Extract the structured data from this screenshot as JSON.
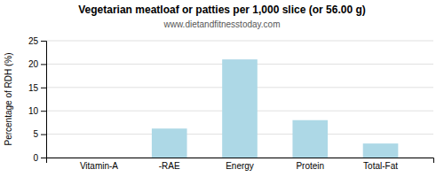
{
  "chart_data": {
    "type": "bar",
    "title": "Vegetarian meatloaf or patties per 1,000 slice (or 56.00 g)",
    "subtitle": "www.dietandfitnesstoday.com",
    "ylabel": "Percentage of RDH (%)",
    "categories": [
      "Vitamin-A",
      "-RAE",
      "Energy",
      "Protein",
      "Total-Fat"
    ],
    "values": [
      0,
      6.2,
      21.0,
      8.0,
      3.0
    ],
    "color": "#add8e6",
    "ylim": [
      0,
      25
    ],
    "yticks": [
      0,
      5,
      10,
      15,
      20,
      25
    ],
    "grid": true
  }
}
